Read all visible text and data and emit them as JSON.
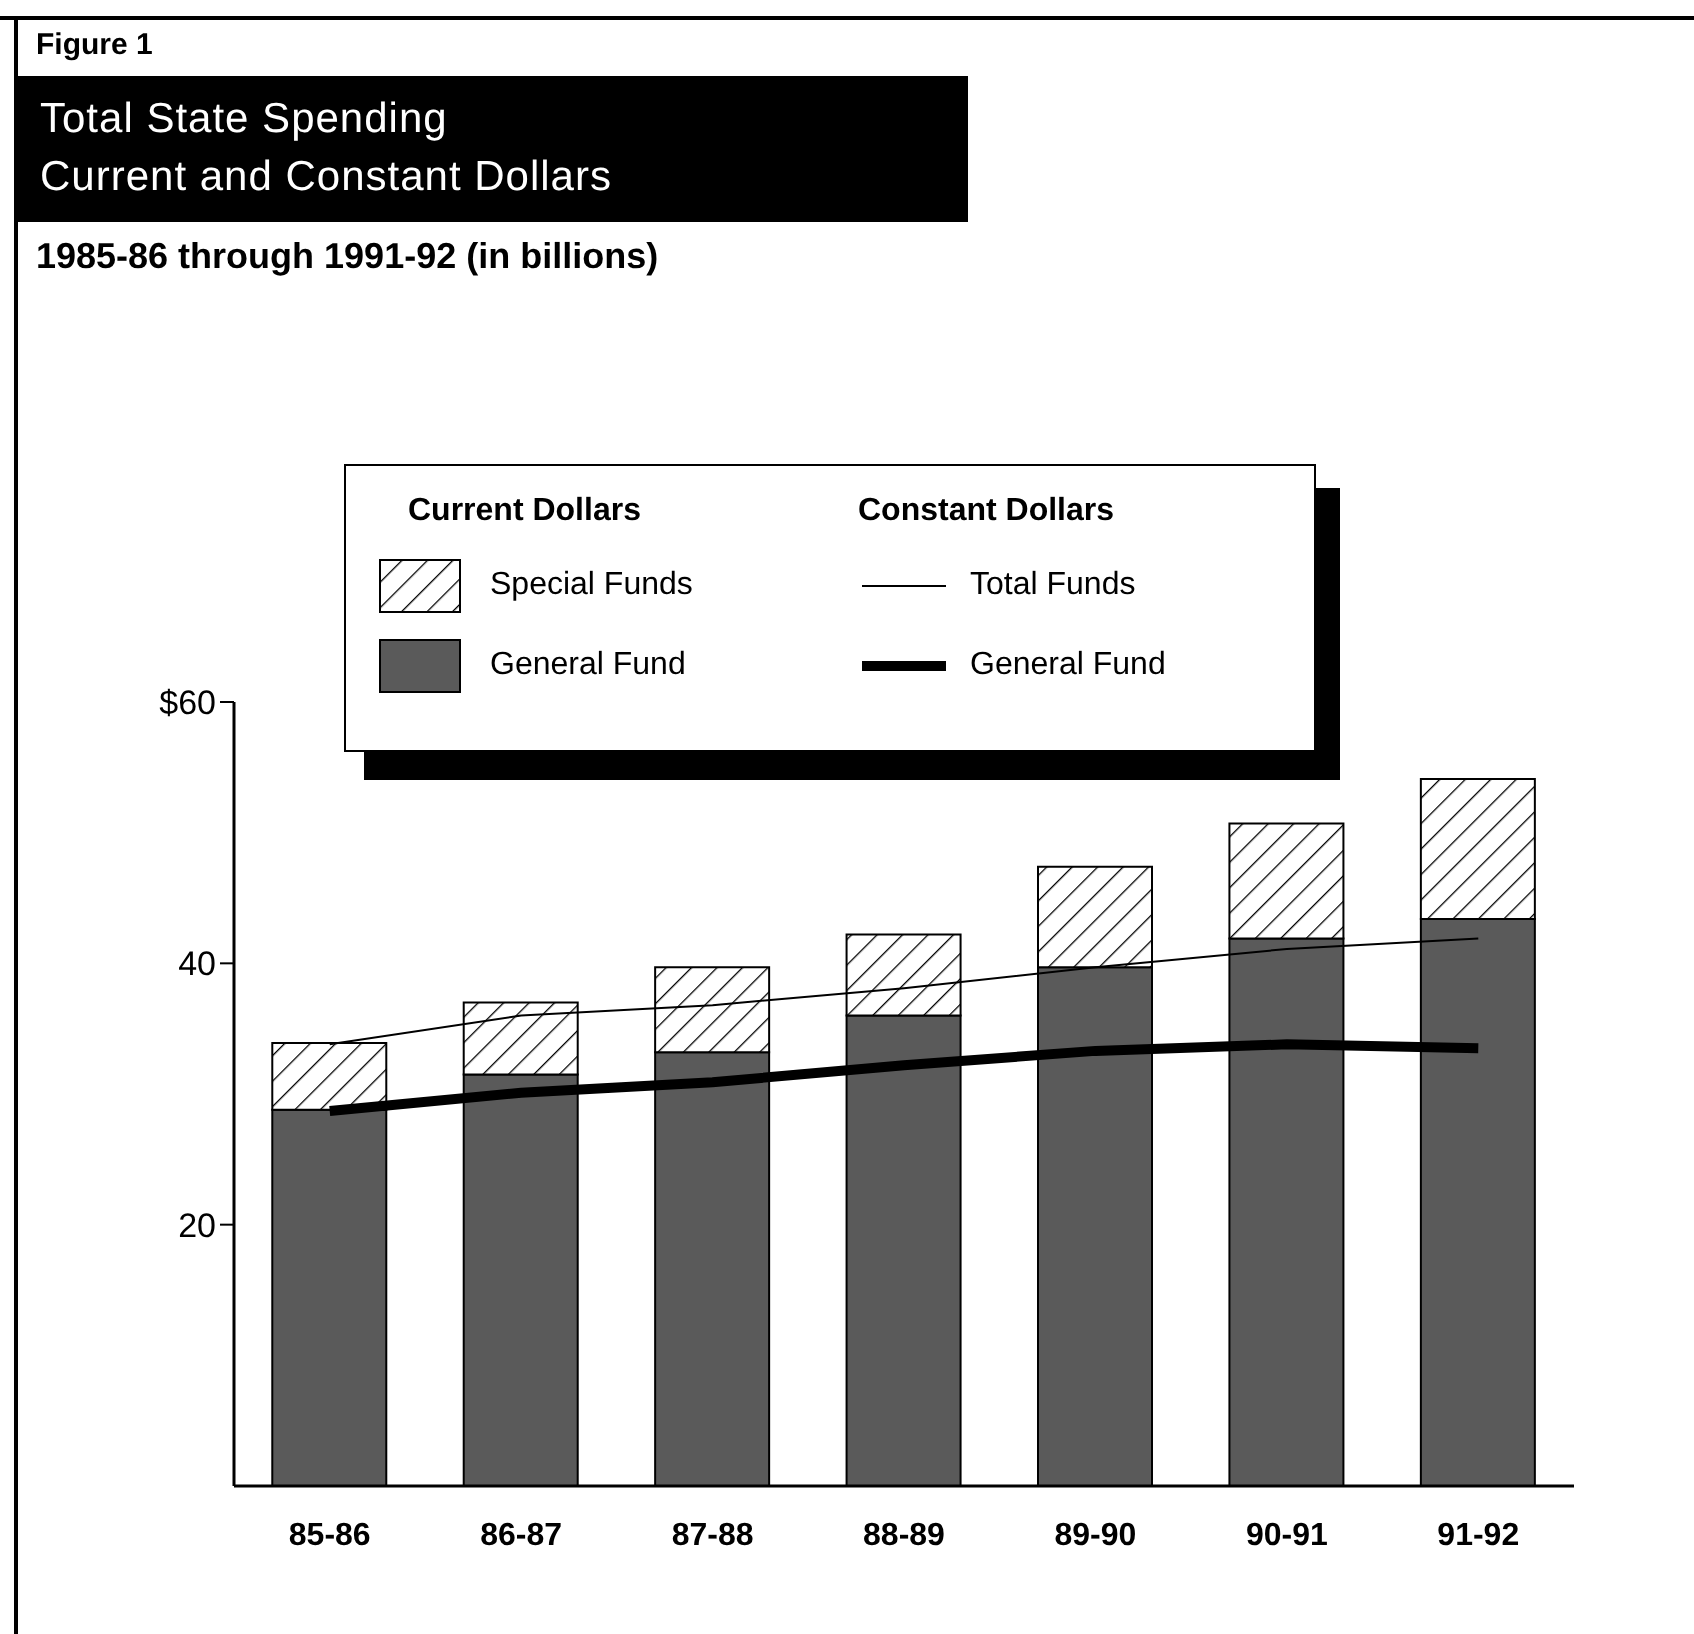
{
  "chart_data": {
    "type": "bar",
    "title": "Total State Spending\nCurrent and Constant Dollars",
    "subtitle": "1985-86 through 1991-92 (in billions)",
    "annotations": [
      "Figure 1",
      "Current Dollars",
      "Constant Dollars"
    ],
    "categories": [
      "85-86",
      "86-87",
      "87-88",
      "88-89",
      "89-90",
      "90-91",
      "91-92"
    ],
    "stacked": true,
    "series": [
      {
        "name": "General Fund",
        "color": "#5a5a5a",
        "values": [
          28.8,
          31.5,
          33.2,
          36.0,
          39.7,
          41.9,
          43.4
        ]
      },
      {
        "name": "Special Funds",
        "color": "#000000",
        "values": [
          5.1,
          5.5,
          6.5,
          6.2,
          7.7,
          8.8,
          10.7
        ]
      },
      {
        "name": "Total Funds",
        "type": "line",
        "color": "#000000",
        "values": [
          33.8,
          36.0,
          36.8,
          38.1,
          39.7,
          41.1,
          41.9
        ]
      },
      {
        "name": "General Fund",
        "type": "line",
        "color": "#000000",
        "values": [
          28.7,
          30.1,
          30.9,
          32.2,
          33.3,
          33.8,
          33.5
        ]
      }
    ],
    "ylim": [
      0,
      60
    ],
    "yticks": [
      20,
      40,
      {
        "value": 60,
        "label": "$60"
      }
    ],
    "grid": false,
    "legend": "top"
  }
}
